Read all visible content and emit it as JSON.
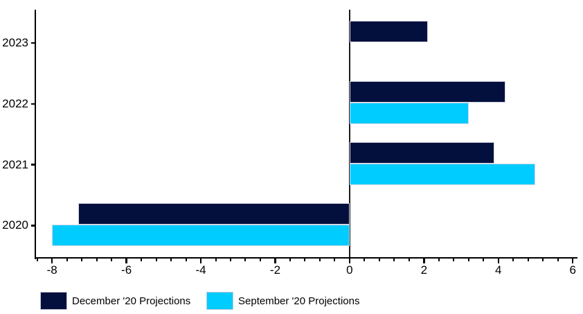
{
  "chart_data": {
    "type": "bar",
    "orientation": "horizontal",
    "title": "",
    "xlabel": "",
    "ylabel": "",
    "categories": [
      "2023",
      "2022",
      "2021",
      "2020"
    ],
    "series": [
      {
        "name": "December '20 Projections",
        "color": "#03103d",
        "values": [
          2.1,
          4.2,
          3.9,
          -7.3
        ]
      },
      {
        "name": "September '20 Projections",
        "color": "#00ccff",
        "values": [
          null,
          3.2,
          5.0,
          -8.0
        ]
      }
    ],
    "x_axis": {
      "range": [
        -8.45,
        6.08
      ],
      "major_ticks": [
        -8,
        -6,
        -4,
        -2,
        0,
        2,
        4,
        6
      ],
      "major_tick_labels": [
        "-8",
        "-6",
        "-4",
        "-2",
        "0",
        "2",
        "4",
        "6"
      ],
      "minor_tick_step": 0.4
    },
    "y_axis": {
      "labels": [
        "2023",
        "2022",
        "2021",
        "2020"
      ]
    },
    "grid": false,
    "zero_line": true,
    "legend_position": "bottom-left"
  }
}
